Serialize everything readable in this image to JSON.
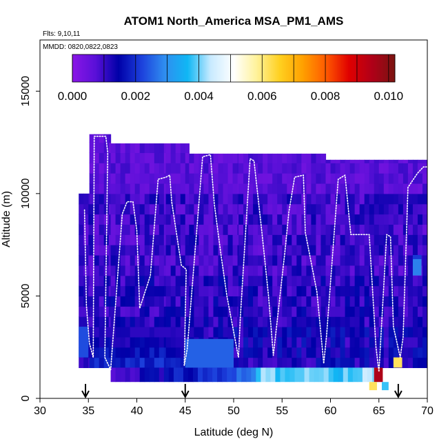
{
  "chart_data": {
    "type": "heatmap",
    "title": "ATOM1 North_America MSA_PM1_AMS",
    "flights_label": "Flts: 9,10,11",
    "dates_label": "MMDD: 0820,0822,0823",
    "xlabel": "Latitude (deg N)",
    "ylabel": "Altitude (m)",
    "xlim": [
      30,
      70
    ],
    "ylim": [
      0,
      17500
    ],
    "xticks": [
      "30",
      "35",
      "40",
      "45",
      "50",
      "55",
      "60",
      "65",
      "70"
    ],
    "yticks": [
      "0",
      "5000",
      "10000",
      "15000"
    ],
    "colorbar": {
      "min": 0.0,
      "max": 0.0102,
      "ticks": [
        "0.000",
        "0.002",
        "0.004",
        "0.006",
        "0.008",
        "0.010"
      ],
      "stops": [
        "#8a16e6",
        "#5a10d8",
        "#0000a8",
        "#1c40dc",
        "#2f8df0",
        "#10b7f4",
        "#c8eaff",
        "#ffffff",
        "#fff29a",
        "#ffd020",
        "#ffa000",
        "#ff5a00",
        "#e00000",
        "#b00018",
        "#7a1410"
      ]
    },
    "arrows_latitude": [
      34.7,
      45.0,
      67.0
    ],
    "columns": [
      {
        "x": [
          34.0,
          35.1
        ],
        "ymax": 10000
      },
      {
        "x": [
          35.1,
          37.3
        ],
        "ymax": 12900
      },
      {
        "x": [
          37.3,
          43.0
        ],
        "ymax": 12450
      },
      {
        "x": [
          43.0,
          45.4
        ],
        "ymax": 12450
      },
      {
        "x": [
          45.4,
          50.5
        ],
        "ymax": 11950
      },
      {
        "x": [
          50.5,
          55.0
        ],
        "ymax": 11950
      },
      {
        "x": [
          55.0,
          59.5
        ],
        "ymax": 11950
      },
      {
        "x": [
          59.5,
          63.0
        ],
        "ymax": 11650
      },
      {
        "x": [
          63.0,
          66.0
        ],
        "ymax": 11650
      },
      {
        "x": [
          66.0,
          68.5
        ],
        "ymax": 11650
      },
      {
        "x": [
          68.5,
          70.0
        ],
        "ymax": 11650
      }
    ],
    "low_band": {
      "x": [
        37.3,
        64.5
      ],
      "y": [
        800,
        1500
      ],
      "value": 0.0027
    },
    "mid_band": {
      "x": [
        35.1,
        45.0
      ],
      "y": [
        1500,
        3500
      ],
      "value": 0.0018
    },
    "hot_cells": [
      {
        "x": [
          64.5,
          65.4
        ],
        "y": [
          800,
          1500
        ],
        "value": 0.0095
      },
      {
        "x": [
          64.0,
          64.8
        ],
        "y": [
          400,
          800
        ],
        "value": 0.0062
      },
      {
        "x": [
          65.3,
          66.0
        ],
        "y": [
          400,
          800
        ],
        "value": 0.0038
      },
      {
        "x": [
          66.5,
          67.4
        ],
        "y": [
          1500,
          2000
        ],
        "value": 0.0062
      },
      {
        "x": [
          68.5,
          69.4
        ],
        "y": [
          6000,
          6900
        ],
        "value": 0.0028
      },
      {
        "x": [
          68.5,
          69.4
        ],
        "y": [
          6800,
          7000
        ],
        "value": 0.0021
      },
      {
        "x": [
          34.0,
          35.0
        ],
        "y": [
          2000,
          3500
        ],
        "value": 0.0023
      },
      {
        "x": [
          45.0,
          50.0
        ],
        "y": [
          1500,
          2900
        ],
        "value": 0.0025
      }
    ],
    "flight_track": [
      [
        34.6,
        9200
      ],
      [
        34.8,
        4500
      ],
      [
        35.1,
        2700
      ],
      [
        35.5,
        2000
      ],
      [
        35.6,
        12800
      ],
      [
        36.8,
        12800
      ],
      [
        37.0,
        12000
      ],
      [
        36.7,
        2000
      ],
      [
        37.3,
        1400
      ],
      [
        38.5,
        9000
      ],
      [
        39.0,
        9600
      ],
      [
        39.6,
        9600
      ],
      [
        40.0,
        8200
      ],
      [
        40.3,
        4400
      ],
      [
        41.4,
        6000
      ],
      [
        42.2,
        10700
      ],
      [
        43.0,
        10800
      ],
      [
        43.4,
        10900
      ],
      [
        43.6,
        9600
      ],
      [
        44.6,
        6500
      ],
      [
        45.1,
        6300
      ],
      [
        44.9,
        1600
      ],
      [
        45.2,
        2400
      ],
      [
        46.8,
        11800
      ],
      [
        47.6,
        11900
      ],
      [
        48.0,
        9500
      ],
      [
        48.7,
        7000
      ],
      [
        49.3,
        5000
      ],
      [
        50.5,
        2000
      ],
      [
        50.7,
        4000
      ],
      [
        51.7,
        11700
      ],
      [
        52.1,
        11600
      ],
      [
        52.9,
        8200
      ],
      [
        53.6,
        5000
      ],
      [
        54.1,
        2100
      ],
      [
        55.3,
        7200
      ],
      [
        55.7,
        9100
      ],
      [
        56.3,
        10800
      ],
      [
        57.2,
        10900
      ],
      [
        57.4,
        8100
      ],
      [
        58.6,
        5200
      ],
      [
        59.3,
        1700
      ],
      [
        59.6,
        3100
      ],
      [
        60.8,
        10700
      ],
      [
        61.5,
        10900
      ],
      [
        62.1,
        8000
      ],
      [
        63.0,
        8000
      ],
      [
        64.0,
        8000
      ],
      [
        64.7,
        2500
      ],
      [
        65.0,
        1300
      ],
      [
        65.8,
        8000
      ],
      [
        66.2,
        7900
      ],
      [
        66.5,
        3500
      ],
      [
        67.2,
        2000
      ],
      [
        67.5,
        3000
      ],
      [
        68.0,
        10300
      ],
      [
        69.0,
        11000
      ],
      [
        69.6,
        11300
      ],
      [
        70.0,
        11300
      ]
    ]
  }
}
